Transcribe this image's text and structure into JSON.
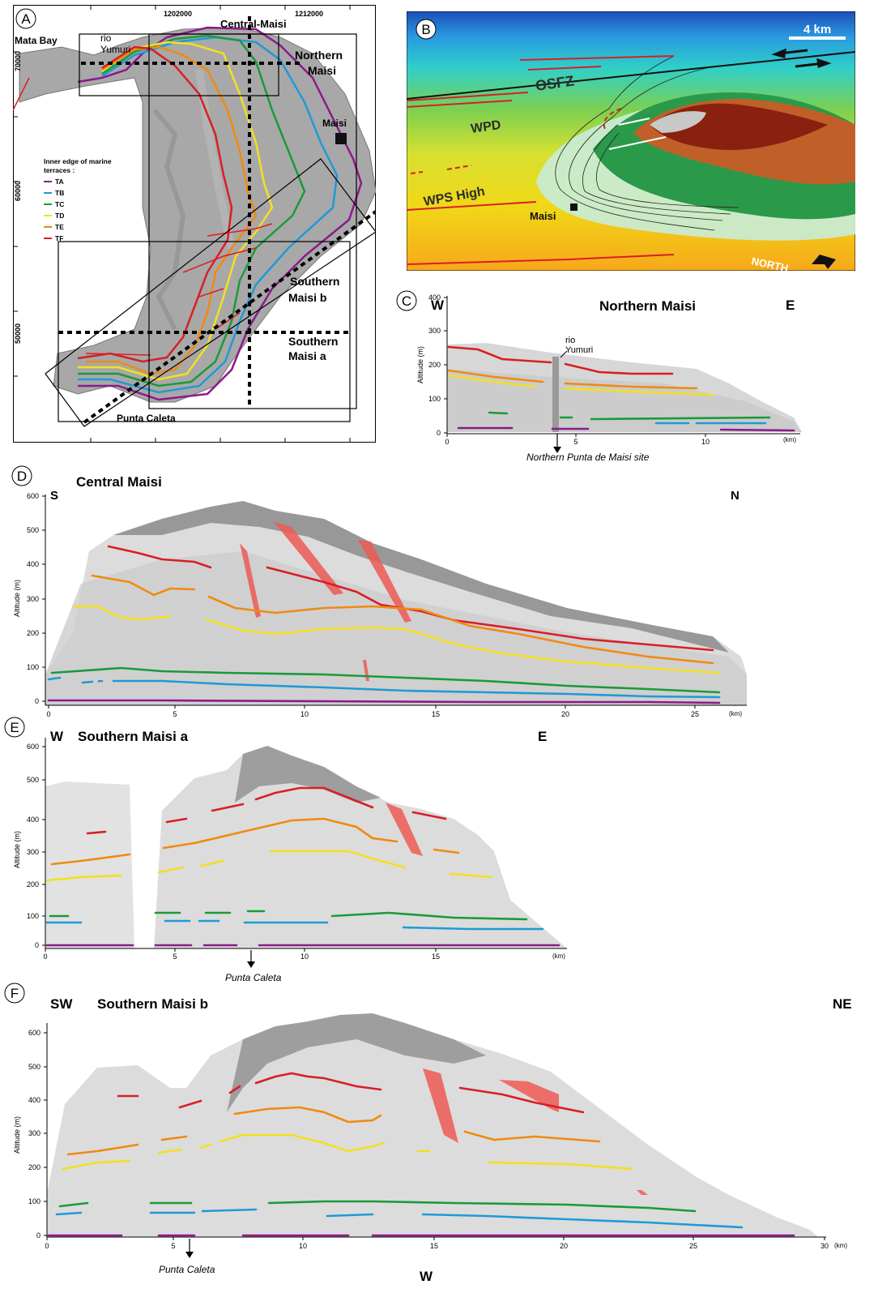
{
  "colors": {
    "TA": "#8b1a8b",
    "TB": "#1f9ad6",
    "TC": "#1a9a3a",
    "TD": "#f2e020",
    "TE": "#f08a10",
    "TF": "#d81f26",
    "fault": "#ee5a55",
    "terrain": "#9b9b9b",
    "grid": "#555555"
  },
  "panelA": {
    "letter": "A",
    "coord_x1": "1202000",
    "coord_x2": "1212000",
    "coord_y1": "70000",
    "coord_y2": "60000",
    "coord_y3": "50000",
    "central_label": "Central-Maisi",
    "northern_label_1": "Northern",
    "northern_label_2": "Maisi",
    "southern_b_label_1": "Southern",
    "southern_b_label_2": "Maisi b",
    "southern_a_label_1": "Southern",
    "southern_a_label_2": "Maisi a",
    "mata_bay": "Mata Bay",
    "rio_yumuri_1": "rio",
    "rio_yumuri_2": "Yumuri",
    "maisi": "Maisi",
    "punta_caleta": "Punta Caleta",
    "legend_title_1": "Inner edge of marine",
    "legend_title_2": "terraces :",
    "legend": [
      "TA",
      "TB",
      "TC",
      "TD",
      "TE",
      "TF"
    ]
  },
  "panelB": {
    "letter": "B",
    "scale": "4 km",
    "osfz": "OSFZ",
    "wpd": "WPD",
    "wps_high": "WPS High",
    "maisi": "Maisi",
    "north": "NORTH"
  },
  "panelC": {
    "letter": "C",
    "west": "W",
    "east": "E",
    "title": "Northern Maisi",
    "ylabel": "Altitude (m)",
    "yticks": [
      "0",
      "100",
      "200",
      "300",
      "400"
    ],
    "xticks": [
      "0",
      "5",
      "10"
    ],
    "xunit": "(km)",
    "rio_1": "rio",
    "rio_2": "Yumuri",
    "site": "Northern Punta de Maisi site"
  },
  "panelD": {
    "letter": "D",
    "south": "S",
    "north": "N",
    "title": "Central Maisi",
    "ylabel": "Altitude (m)",
    "yticks": [
      "0",
      "100",
      "200",
      "300",
      "400",
      "500",
      "600"
    ],
    "xticks": [
      "0",
      "5",
      "10",
      "15",
      "20",
      "25"
    ],
    "xunit": "(km)"
  },
  "panelE": {
    "letter": "E",
    "west": "W",
    "east": "E",
    "title": "Southern Maisi a",
    "ylabel": "Altitude (m)",
    "yticks": [
      "0",
      "100",
      "200",
      "300",
      "400",
      "500",
      "600"
    ],
    "xticks": [
      "0",
      "5",
      "10",
      "15"
    ],
    "xunit": "(km)",
    "site": "Punta Caleta"
  },
  "panelF": {
    "letter": "F",
    "sw": "SW",
    "ne": "NE",
    "title": "Southern Maisi b",
    "ylabel": "Altitude (m)",
    "yticks": [
      "0",
      "100",
      "200",
      "300",
      "400",
      "500",
      "600"
    ],
    "xticks": [
      "0",
      "5",
      "10",
      "15",
      "20",
      "25",
      "30"
    ],
    "xunit": "(km)",
    "site": "Punta Caleta",
    "bottom": "W"
  }
}
